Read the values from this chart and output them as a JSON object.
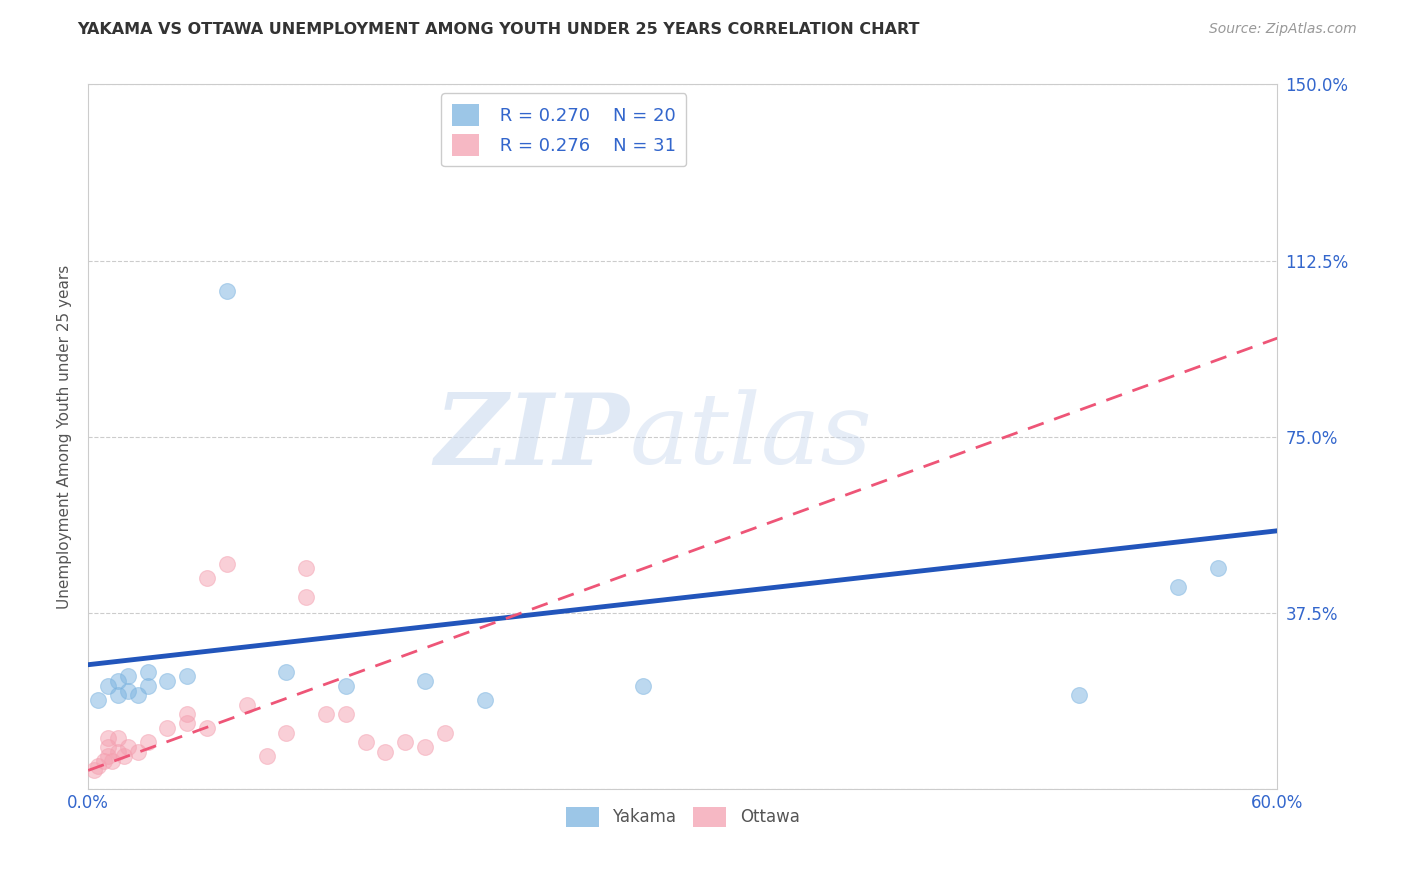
{
  "title": "YAKAMA VS OTTAWA UNEMPLOYMENT AMONG YOUTH UNDER 25 YEARS CORRELATION CHART",
  "source": "Source: ZipAtlas.com",
  "xlabel": "",
  "ylabel": "Unemployment Among Youth under 25 years",
  "xlim": [
    0.0,
    0.6
  ],
  "ylim": [
    0.0,
    1.5
  ],
  "xticks": [
    0.0,
    0.1,
    0.2,
    0.3,
    0.4,
    0.5,
    0.6
  ],
  "xticklabels": [
    "0.0%",
    "",
    "",
    "",
    "",
    "",
    "60.0%"
  ],
  "yticks": [
    0.0,
    0.375,
    0.75,
    1.125,
    1.5
  ],
  "right_yticklabels": [
    "",
    "37.5%",
    "75.0%",
    "112.5%",
    "150.0%"
  ],
  "background_color": "#ffffff",
  "grid_color": "#cccccc",
  "watermark_zip": "ZIP",
  "watermark_atlas": "atlas",
  "legend_R_yakama": "0.270",
  "legend_N_yakama": "20",
  "legend_R_ottawa": "0.276",
  "legend_N_ottawa": "31",
  "yakama_color": "#7bb3e0",
  "ottawa_color": "#f4a0b0",
  "yakama_line_color": "#2255bb",
  "ottawa_line_color": "#ee5577",
  "marker_size": 130,
  "marker_alpha": 0.5,
  "yakama_points_x": [
    0.005,
    0.01,
    0.015,
    0.015,
    0.02,
    0.02,
    0.025,
    0.03,
    0.03,
    0.04,
    0.05,
    0.07,
    0.1,
    0.13,
    0.17,
    0.2,
    0.28,
    0.5,
    0.55,
    0.57
  ],
  "yakama_points_y": [
    0.19,
    0.22,
    0.2,
    0.23,
    0.21,
    0.24,
    0.2,
    0.22,
    0.25,
    0.23,
    0.24,
    1.06,
    0.25,
    0.22,
    0.23,
    0.19,
    0.22,
    0.2,
    0.43,
    0.47
  ],
  "ottawa_points_x": [
    0.003,
    0.005,
    0.008,
    0.01,
    0.01,
    0.01,
    0.012,
    0.015,
    0.015,
    0.018,
    0.02,
    0.025,
    0.03,
    0.04,
    0.05,
    0.05,
    0.06,
    0.06,
    0.07,
    0.08,
    0.09,
    0.1,
    0.11,
    0.11,
    0.12,
    0.13,
    0.14,
    0.15,
    0.16,
    0.17,
    0.18
  ],
  "ottawa_points_y": [
    0.04,
    0.05,
    0.06,
    0.07,
    0.09,
    0.11,
    0.06,
    0.08,
    0.11,
    0.07,
    0.09,
    0.08,
    0.1,
    0.13,
    0.14,
    0.16,
    0.13,
    0.45,
    0.48,
    0.18,
    0.07,
    0.12,
    0.41,
    0.47,
    0.16,
    0.16,
    0.1,
    0.08,
    0.1,
    0.09,
    0.12
  ],
  "yakama_trendline_x": [
    0.0,
    0.6
  ],
  "yakama_trendline_y": [
    0.265,
    0.55
  ],
  "ottawa_trendline_x": [
    0.0,
    0.6
  ],
  "ottawa_trendline_y": [
    0.04,
    0.96
  ]
}
